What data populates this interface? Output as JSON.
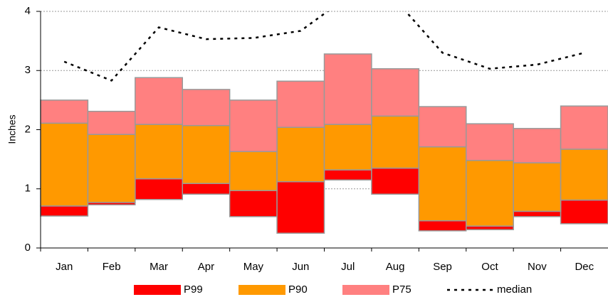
{
  "chart_data": {
    "type": "floating_bar",
    "y_label": "Inches",
    "categories": [
      "Jan",
      "Feb",
      "Mar",
      "Apr",
      "May",
      "Jun",
      "Jul",
      "Aug",
      "Sep",
      "Oct",
      "Nov",
      "Dec"
    ],
    "ylim": [
      0,
      4
    ],
    "yticks": [
      0,
      1,
      2,
      3,
      4
    ],
    "grid": true,
    "series": [
      {
        "name": "P99",
        "color": "#ff0000",
        "values": [
          [
            0.54,
            0.71
          ],
          [
            0.73,
            0.77
          ],
          [
            0.82,
            1.17
          ],
          [
            0.91,
            1.09
          ],
          [
            0.53,
            0.97
          ],
          [
            0.25,
            1.12
          ],
          [
            1.15,
            1.32
          ],
          [
            0.91,
            1.35
          ],
          [
            0.29,
            0.46
          ],
          [
            0.31,
            0.37
          ],
          [
            0.53,
            0.62
          ],
          [
            0.41,
            0.81
          ]
        ]
      },
      {
        "name": "P90",
        "color": "#ff9900",
        "values": [
          [
            0.71,
            2.11
          ],
          [
            0.77,
            1.92
          ],
          [
            1.17,
            2.09
          ],
          [
            1.09,
            2.07
          ],
          [
            0.97,
            1.63
          ],
          [
            1.12,
            2.04
          ],
          [
            1.32,
            2.09
          ],
          [
            1.35,
            2.23
          ],
          [
            0.46,
            1.71
          ],
          [
            0.37,
            1.48
          ],
          [
            0.62,
            1.44
          ],
          [
            0.81,
            1.67
          ]
        ]
      },
      {
        "name": "P75",
        "color": "#ff8080",
        "values": [
          [
            2.11,
            2.5
          ],
          [
            1.92,
            2.31
          ],
          [
            2.09,
            2.88
          ],
          [
            2.07,
            2.68
          ],
          [
            1.63,
            2.5
          ],
          [
            2.04,
            2.82
          ],
          [
            2.09,
            3.28
          ],
          [
            2.23,
            3.03
          ],
          [
            1.71,
            2.39
          ],
          [
            1.48,
            2.1
          ],
          [
            1.44,
            2.02
          ],
          [
            1.67,
            2.4
          ]
        ]
      },
      {
        "name": "median",
        "type": "line",
        "color": "#000000",
        "values": [
          3.15,
          2.83,
          3.73,
          3.53,
          3.55,
          3.67,
          4.25,
          4.2,
          3.3,
          3.03,
          3.1,
          3.3
        ]
      }
    ]
  }
}
